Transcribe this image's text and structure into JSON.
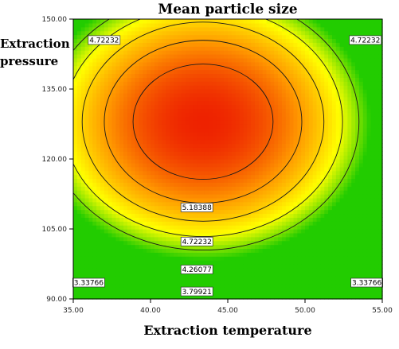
{
  "chart_data": {
    "type": "heatmap",
    "title": "Mean particle size",
    "xlabel": "Extraction temperature",
    "ylabel_lines": [
      "Extraction",
      "pressure"
    ],
    "xlim": [
      35,
      55
    ],
    "ylim": [
      90,
      150
    ],
    "x_ticks": [
      "35.00",
      "40.00",
      "45.00",
      "50.00",
      "55.00"
    ],
    "y_ticks": [
      "90.00",
      "105.00",
      "120.00",
      "135.00",
      "150.00"
    ],
    "colormap": [
      "#22cc00",
      "#ffff00",
      "#ff9900",
      "#ee2200"
    ],
    "surface_max": 5.65,
    "surface_center": [
      43.4,
      128.0
    ],
    "contours": [
      {
        "level": 5.18388,
        "label": "5.18388",
        "label_pos": [
          43.0,
          109.6
        ]
      },
      {
        "level": 4.72232,
        "label": "4.72232",
        "label_pos": [
          43.0,
          102.3
        ]
      },
      {
        "level": 4.72232,
        "label": "4.72232",
        "label_pos": [
          37.0,
          145.5
        ]
      },
      {
        "level": 4.72232,
        "label": "4.72232",
        "label_pos": [
          53.9,
          145.5
        ]
      },
      {
        "level": 4.26077,
        "label": "4.26077",
        "label_pos": [
          43.0,
          96.3
        ]
      },
      {
        "level": 3.79921,
        "label": "3.79921",
        "label_pos": [
          43.0,
          91.6
        ]
      },
      {
        "level": 3.33766,
        "label": "3.33766",
        "label_pos": [
          36.0,
          93.5
        ]
      },
      {
        "level": 3.33766,
        "label": "3.33766",
        "label_pos": [
          54.0,
          93.5
        ]
      }
    ],
    "grid": false
  }
}
